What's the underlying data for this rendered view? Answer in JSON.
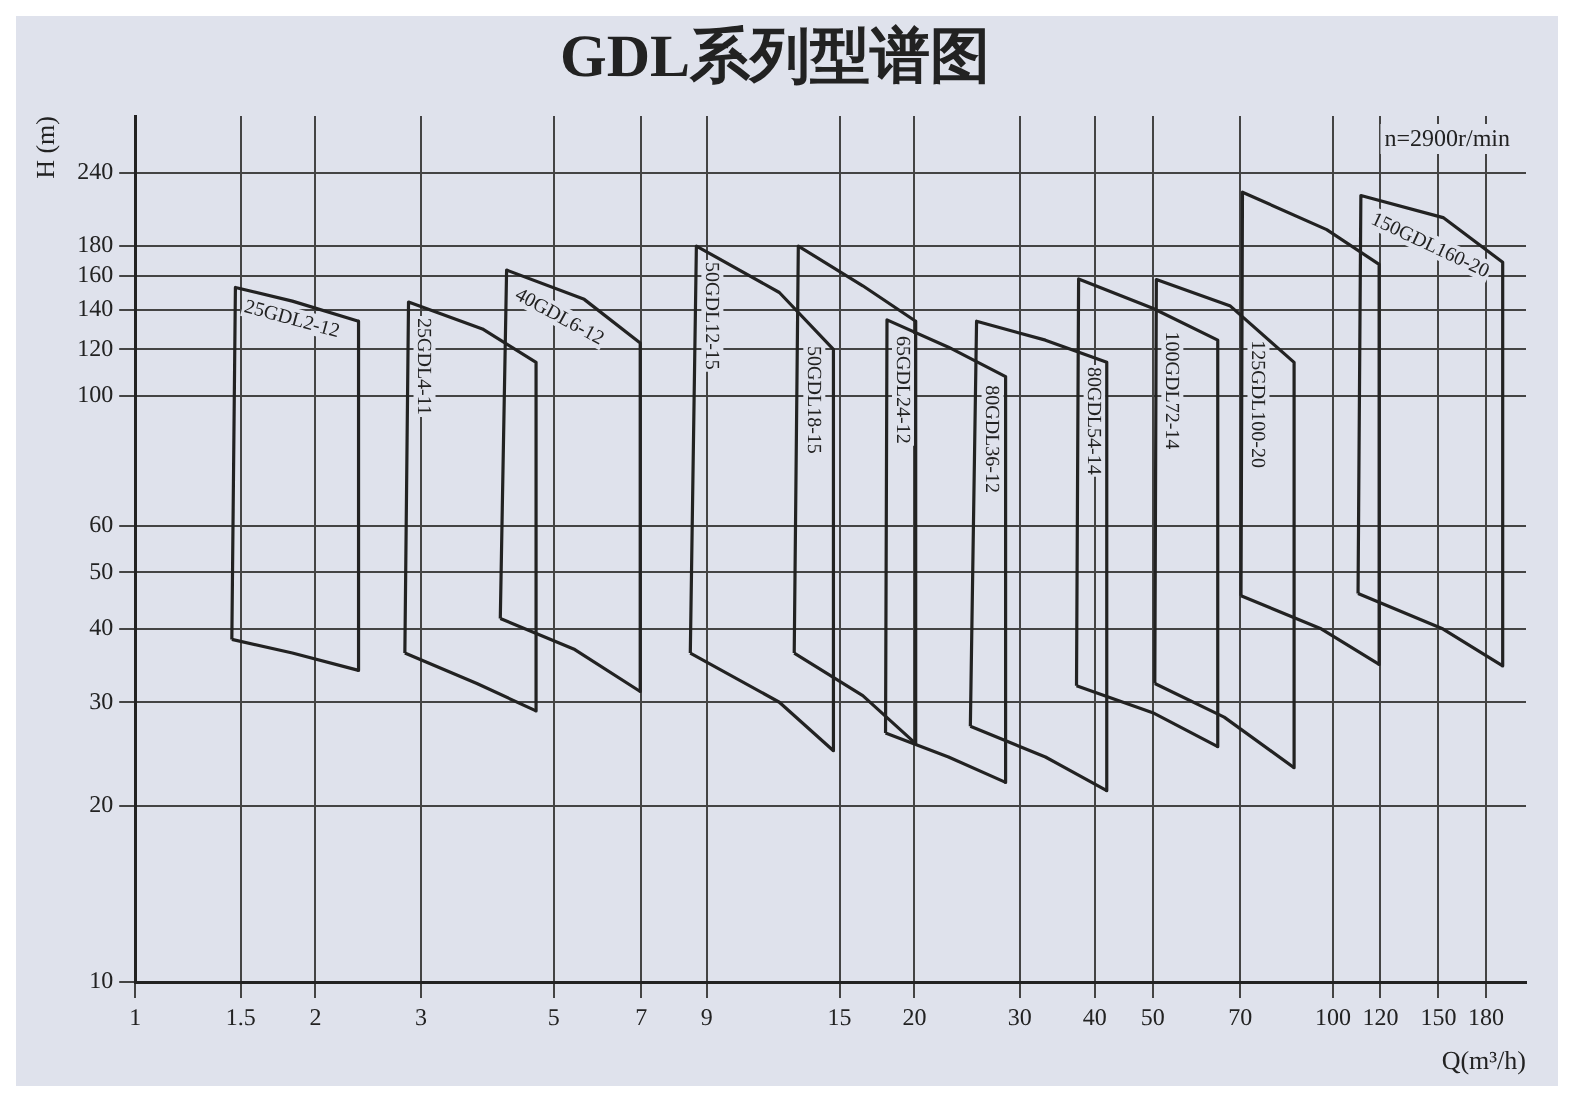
{
  "chart_data": {
    "type": "line",
    "title": "GDL系列型谱图",
    "xlabel": "Q(m³/h)",
    "ylabel": "H (m)",
    "annotations": [
      "n=2900r/min"
    ],
    "log": "xy",
    "xlim": [
      1,
      210
    ],
    "ylim": [
      10,
      300
    ],
    "xticks": [
      1,
      1.5,
      2,
      3,
      5,
      7,
      9,
      15,
      20,
      30,
      40,
      50,
      70,
      100,
      120,
      150,
      180
    ],
    "yticks": [
      10,
      20,
      30,
      40,
      50,
      60,
      100,
      120,
      140,
      160,
      180,
      240
    ],
    "grid": true,
    "legend": false,
    "marker": "none",
    "line_style": "solid",
    "series": [
      {
        "name": "25GDL2-12",
        "type": "line",
        "color": "#222222",
        "x": [
          1.45,
          1.47,
          1.83,
          2.36,
          2.36
        ],
        "values": [
          38.4,
          153,
          145,
          134,
          34
        ]
      },
      {
        "type": "line",
        "color": "#222222",
        "x": [
          1.45,
          1.83,
          2.36
        ],
        "values": [
          38.4,
          36.4,
          34
        ]
      },
      {
        "name": "25GDL4-11",
        "type": "line",
        "color": "#222222",
        "x": [
          2.82,
          2.86,
          3.8,
          4.67,
          4.67
        ],
        "values": [
          36.4,
          144.5,
          130,
          114,
          29
        ]
      },
      {
        "type": "line",
        "color": "#222222",
        "x": [
          2.82,
          3.72,
          4.67
        ],
        "values": [
          36.4,
          32.3,
          29
        ]
      },
      {
        "name": "40GDL6-12",
        "type": "line",
        "color": "#222222",
        "x": [
          4.07,
          4.17,
          5.62,
          6.97,
          6.97
        ],
        "values": [
          41.7,
          163.8,
          146,
          123,
          31.3
        ]
      },
      {
        "type": "line",
        "color": "#222222",
        "x": [
          4.07,
          5.42,
          6.97
        ],
        "values": [
          41.7,
          36.9,
          31.3
        ]
      },
      {
        "name": "50GDL12-15",
        "type": "line",
        "color": "#222222",
        "x": [
          8.45,
          8.65,
          11.9,
          14.65,
          14.65
        ],
        "values": [
          36.4,
          180,
          150,
          120,
          24.8
        ]
      },
      {
        "type": "line",
        "color": "#222222",
        "x": [
          8.45,
          11.9,
          14.65
        ],
        "values": [
          36.4,
          30,
          24.8
        ]
      },
      {
        "name": "50GDL18-15",
        "type": "line",
        "color": "#222222",
        "x": [
          12.6,
          12.8,
          16.4,
          20.1,
          20.1
        ],
        "values": [
          36.4,
          180,
          154,
          134,
          25.5
        ]
      },
      {
        "type": "line",
        "color": "#222222",
        "x": [
          12.6,
          16.4,
          20.1
        ],
        "values": [
          36.4,
          30.8,
          25.5
        ]
      },
      {
        "name": "65GDL24-12",
        "type": "line",
        "color": "#222222",
        "x": [
          17.9,
          18,
          22.8,
          28.4,
          28.4
        ],
        "values": [
          26.6,
          134.7,
          121,
          107.8,
          21.9
        ]
      },
      {
        "type": "line",
        "color": "#222222",
        "x": [
          17.9,
          22.8,
          28.4
        ],
        "values": [
          26.6,
          24.2,
          21.9
        ]
      },
      {
        "name": "80GDL36-12",
        "type": "line",
        "color": "#222222",
        "x": [
          24.8,
          25.4,
          33.1,
          41.9,
          41.9
        ],
        "values": [
          27.3,
          134,
          124.4,
          114,
          21.2
        ]
      },
      {
        "type": "line",
        "color": "#222222",
        "x": [
          24.8,
          33.1,
          41.9
        ],
        "values": [
          27.3,
          24.2,
          21.2
        ]
      },
      {
        "name": "80GDL54-14",
        "type": "line",
        "color": "#222222",
        "x": [
          37.3,
          37.6,
          50,
          64.2,
          64.2
        ],
        "values": [
          32,
          158.2,
          141,
          124.4,
          25.2
        ]
      },
      {
        "type": "line",
        "color": "#222222",
        "x": [
          37.3,
          50,
          64.2
        ],
        "values": [
          32,
          28.8,
          25.2
        ]
      },
      {
        "name": "100GDL72-14",
        "type": "line",
        "color": "#222222",
        "x": [
          50.4,
          50.7,
          67.4,
          86.1,
          86.1
        ],
        "values": [
          32.3,
          157.8,
          142.2,
          114,
          23.2
        ]
      },
      {
        "type": "line",
        "color": "#222222",
        "x": [
          50.4,
          65.8,
          86.1
        ],
        "values": [
          32.3,
          28.3,
          23.2
        ]
      },
      {
        "name": "125GDL100-20",
        "type": "line",
        "color": "#222222",
        "x": [
          70.2,
          70.6,
          97.6,
          119.4,
          119.4
        ],
        "values": [
          45.6,
          222.4,
          192,
          167.5,
          34.8
        ]
      },
      {
        "type": "line",
        "color": "#222222",
        "x": [
          70.2,
          95.7,
          119.4
        ],
        "values": [
          45.6,
          40,
          34.8
        ]
      },
      {
        "name": "150GDL160-20",
        "type": "line",
        "color": "#222222",
        "x": [
          110.1,
          111.3,
          152.7,
          192,
          192
        ],
        "values": [
          46,
          219.5,
          201.3,
          168.9,
          34.6
        ]
      },
      {
        "type": "line",
        "color": "#222222",
        "x": [
          110.1,
          152.7,
          192
        ],
        "values": [
          46,
          40,
          34.6
        ]
      }
    ]
  }
}
